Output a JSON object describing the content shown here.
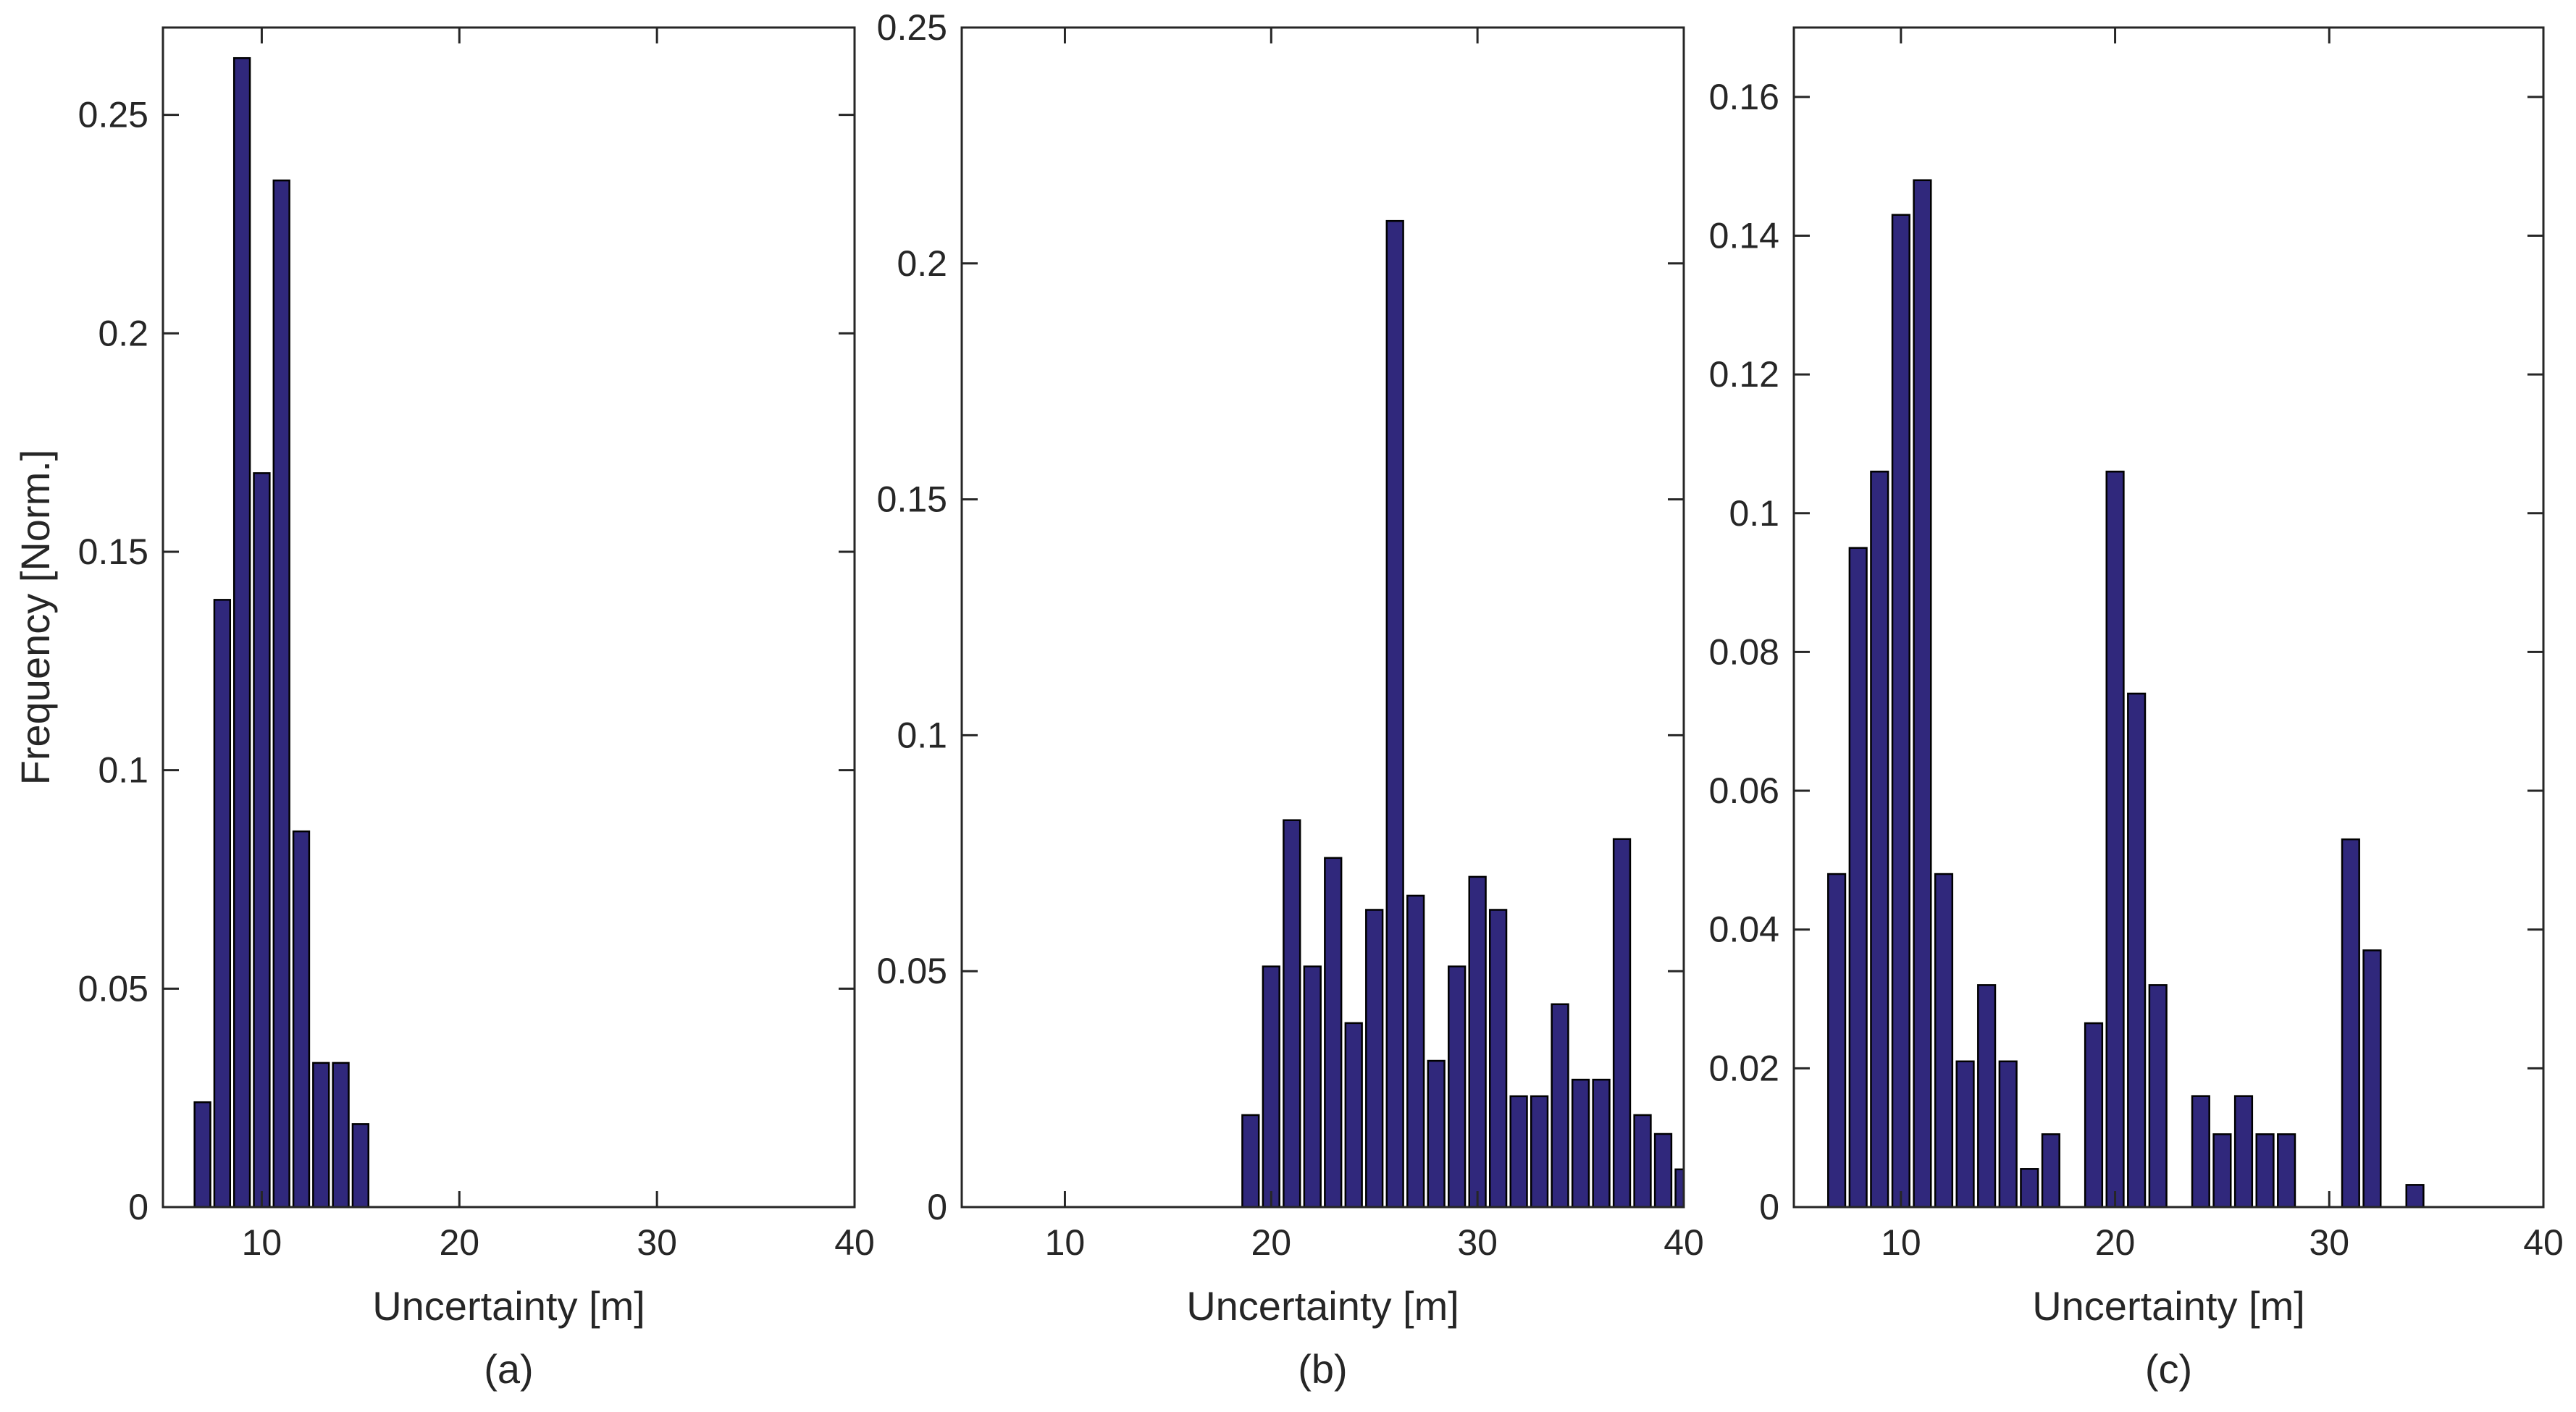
{
  "colors": {
    "bar_fill": "#30287c",
    "bar_edge": "#000000",
    "axis": "#262626",
    "background": "#ffffff"
  },
  "chart_data": [
    {
      "id": "a",
      "type": "bar",
      "caption": "(a)",
      "xlabel": "Uncertainty [m]",
      "ylabel": "Frequency [Norm.]",
      "xlim": [
        5,
        40
      ],
      "ylim": [
        0,
        0.27
      ],
      "xticks": [
        10,
        20,
        30,
        40
      ],
      "xtick_labels": [
        "10",
        "20",
        "30",
        "40"
      ],
      "yticks": [
        0,
        0.05,
        0.1,
        0.15,
        0.2,
        0.25
      ],
      "ytick_labels": [
        "0",
        "0.05",
        "0.1",
        "0.15",
        "0.2",
        "0.25"
      ],
      "x": [
        7,
        8,
        9,
        10,
        11,
        12,
        13,
        14,
        15
      ],
      "values": [
        0.024,
        0.139,
        0.263,
        0.168,
        0.235,
        0.086,
        0.033,
        0.033,
        0.019
      ]
    },
    {
      "id": "b",
      "type": "bar",
      "caption": "(b)",
      "xlabel": "Uncertainty [m]",
      "ylabel": "",
      "xlim": [
        5,
        40
      ],
      "ylim": [
        0,
        0.25
      ],
      "xticks": [
        10,
        20,
        30,
        40
      ],
      "xtick_labels": [
        "10",
        "20",
        "30",
        "40"
      ],
      "yticks": [
        0,
        0.05,
        0.1,
        0.15,
        0.2,
        0.25
      ],
      "ytick_labels": [
        "0",
        "0.05",
        "0.1",
        "0.15",
        "0.2",
        "0.25"
      ],
      "x": [
        19,
        20,
        21,
        22,
        23,
        24,
        25,
        26,
        27,
        28,
        29,
        30,
        31,
        32,
        33,
        34,
        35,
        36,
        37,
        38,
        39,
        40
      ],
      "values": [
        0.0195,
        0.051,
        0.082,
        0.051,
        0.074,
        0.039,
        0.063,
        0.209,
        0.066,
        0.031,
        0.051,
        0.07,
        0.063,
        0.0235,
        0.0235,
        0.043,
        0.027,
        0.027,
        0.078,
        0.0195,
        0.0155,
        0.008
      ]
    },
    {
      "id": "c",
      "type": "bar",
      "caption": "(c)",
      "xlabel": "Uncertainty [m]",
      "ylabel": "",
      "xlim": [
        5,
        40
      ],
      "ylim": [
        0,
        0.17
      ],
      "xticks": [
        10,
        20,
        30,
        40
      ],
      "xtick_labels": [
        "10",
        "20",
        "30",
        "40"
      ],
      "yticks": [
        0,
        0.02,
        0.04,
        0.06,
        0.08,
        0.1,
        0.12,
        0.14,
        0.16
      ],
      "ytick_labels": [
        "0",
        "0.02",
        "0.04",
        "0.06",
        "0.08",
        "0.1",
        "0.12",
        "0.14",
        "0.16"
      ],
      "x": [
        7,
        8,
        9,
        10,
        11,
        12,
        13,
        14,
        15,
        16,
        17,
        19,
        20,
        21,
        22,
        24,
        25,
        26,
        27,
        28,
        31,
        32,
        34
      ],
      "values": [
        0.048,
        0.095,
        0.106,
        0.143,
        0.148,
        0.048,
        0.021,
        0.032,
        0.021,
        0.0055,
        0.0105,
        0.0265,
        0.106,
        0.074,
        0.032,
        0.016,
        0.0105,
        0.016,
        0.0105,
        0.0105,
        0.053,
        0.037,
        0.0032
      ]
    }
  ]
}
